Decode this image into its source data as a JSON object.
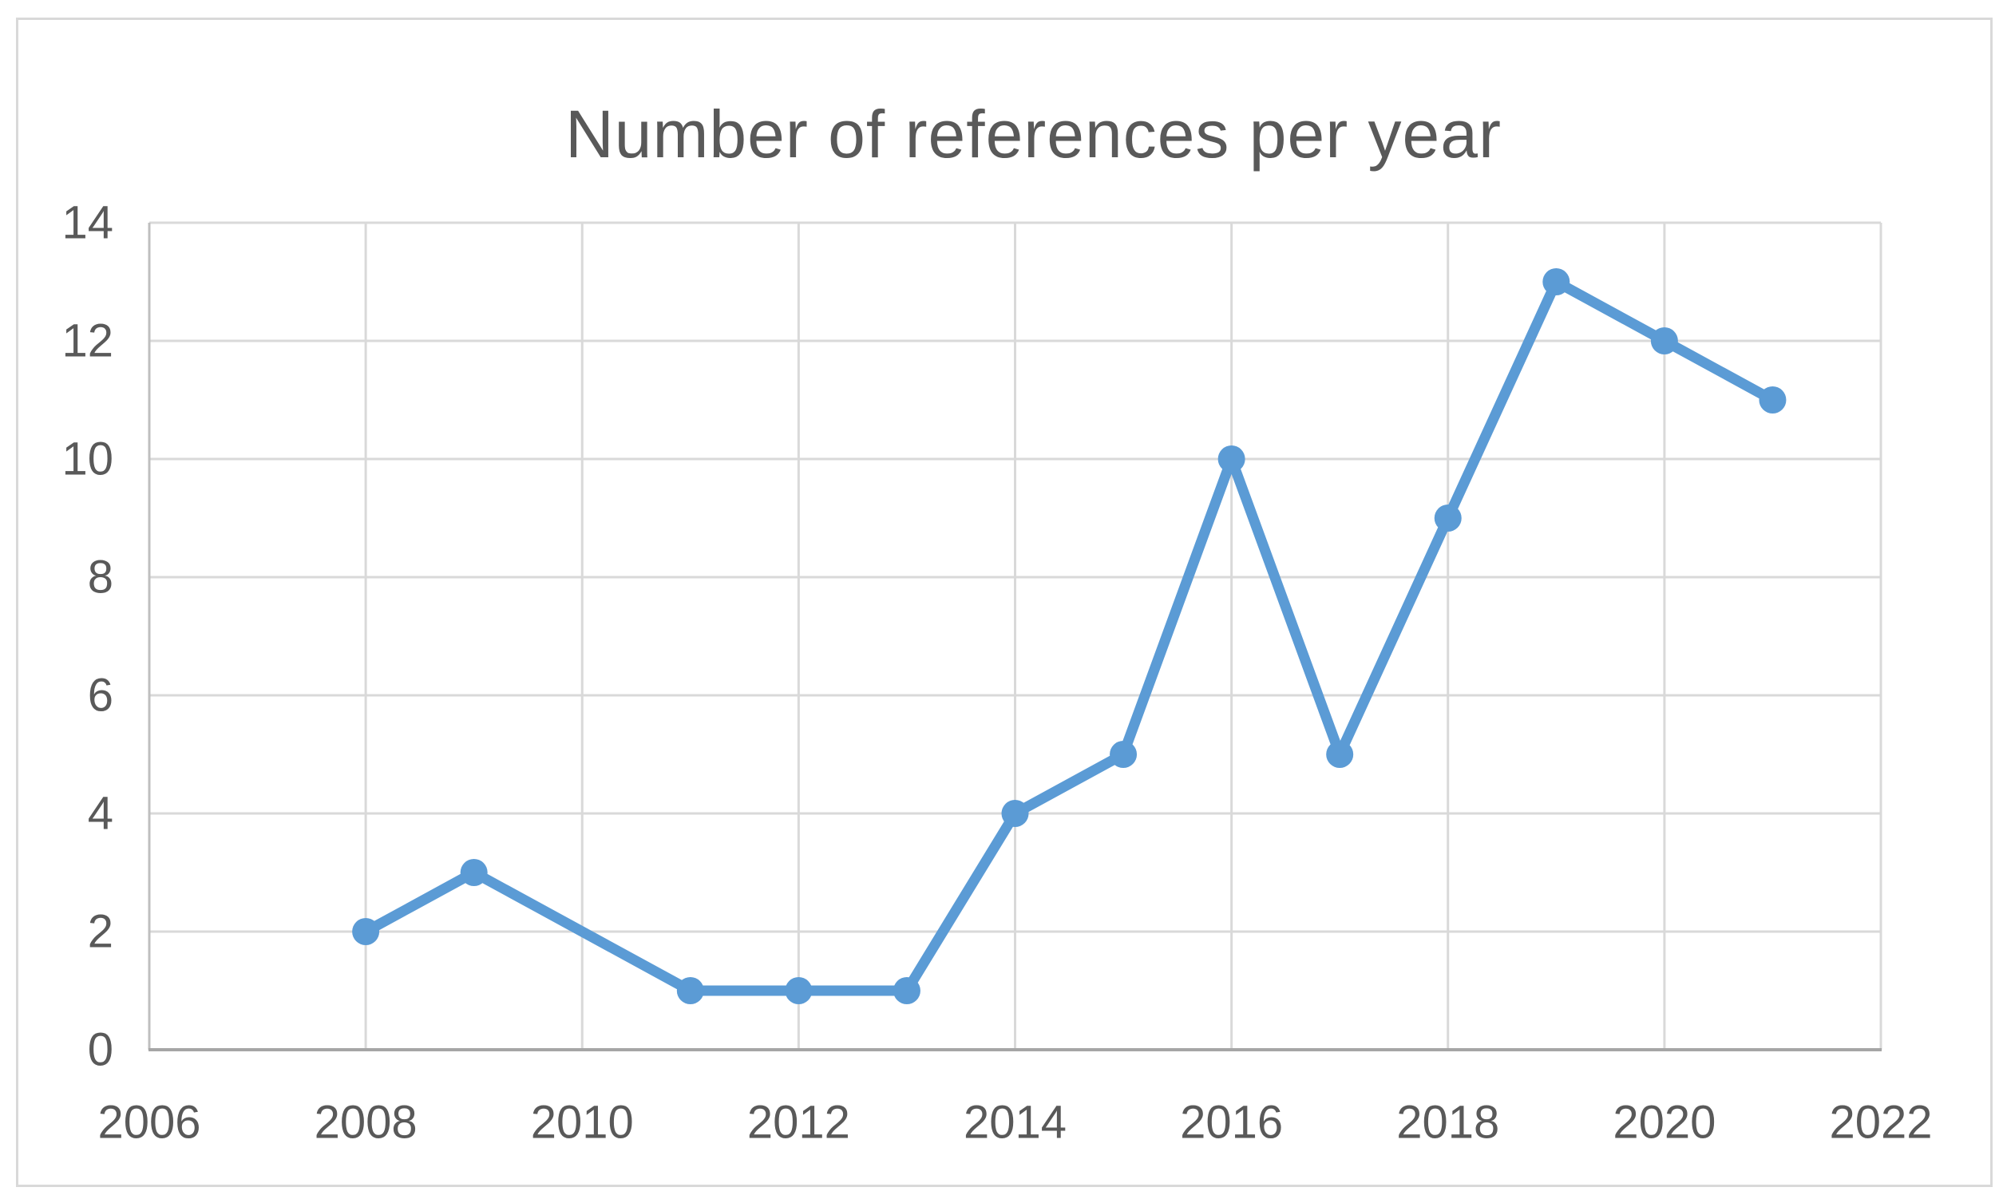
{
  "chart_data": {
    "type": "line",
    "title": "Number of references per year",
    "x": [
      2008,
      2009,
      2011,
      2012,
      2013,
      2014,
      2015,
      2016,
      2017,
      2018,
      2019,
      2020,
      2021
    ],
    "y": [
      2,
      3,
      1,
      1,
      1,
      4,
      5,
      10,
      5,
      9,
      13,
      12,
      11
    ],
    "xlabel": "",
    "ylabel": "",
    "xlim": [
      2006,
      2022
    ],
    "ylim": [
      0,
      14
    ],
    "x_ticks": [
      2006,
      2008,
      2010,
      2012,
      2014,
      2016,
      2018,
      2020,
      2022
    ],
    "y_ticks": [
      0,
      2,
      4,
      6,
      8,
      10,
      12,
      14
    ],
    "grid": "both",
    "legend": "none",
    "marker": "circle",
    "note_missing_x": [
      2010
    ]
  },
  "colors": {
    "line": "#5B9BD5",
    "marker": "#5B9BD5",
    "gridline": "#D9D9D9",
    "y_axis_line": "#BFBFBF",
    "x_axis_line": "#A6A6A6",
    "tick_label": "#595959",
    "title": "#595959",
    "frame_border": "#D9D9D9",
    "background": "#FFFFFF"
  }
}
